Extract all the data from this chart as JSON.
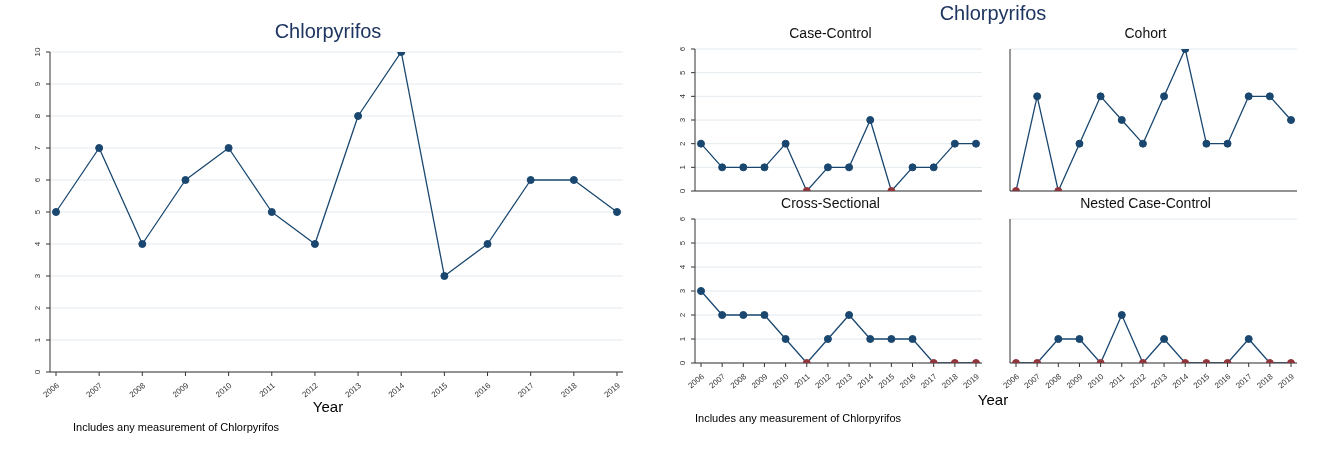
{
  "chart_data": [
    {
      "type": "line",
      "title": "Chlorpyrifos",
      "xlabel": "Year",
      "annotations": [
        "Includes any measurement of Chlorpyrifos"
      ],
      "categories": [
        "2006",
        "2007",
        "2008",
        "2009",
        "2010",
        "2011",
        "2012",
        "2013",
        "2014",
        "2015",
        "2016",
        "2017",
        "2018",
        "2019"
      ],
      "series": [
        {
          "color": "#1a476f",
          "values": [
            5,
            7,
            4,
            6,
            7,
            5,
            4,
            8,
            10,
            3,
            4,
            6,
            6,
            5
          ]
        }
      ],
      "ylim": [
        0,
        10
      ],
      "yticks": [
        0,
        1,
        2,
        3,
        4,
        5,
        6,
        7,
        8,
        9,
        10
      ],
      "grid": "y",
      "marker": "circle"
    },
    {
      "type": "other",
      "title": "Chlorpyrifos",
      "xlabel": "Year",
      "annotations": [
        "Includes any measurement of Chlorpyrifos"
      ]
    },
    {
      "type": "line",
      "title": "Case-Control",
      "categories": [
        "2006",
        "2007",
        "2008",
        "2009",
        "2010",
        "2011",
        "2012",
        "2013",
        "2014",
        "2015",
        "2016",
        "2017",
        "2018",
        "2019"
      ],
      "series": [
        {
          "color": "#1a476f",
          "values": [
            2,
            1,
            1,
            1,
            2,
            0,
            1,
            1,
            3,
            0,
            1,
            1,
            2,
            2
          ],
          "colors": [
            "#1a476f",
            "#1a476f",
            "#1a476f",
            "#1a476f",
            "#1a476f",
            "#90353b",
            "#1a476f",
            "#1a476f",
            "#1a476f",
            "#90353b",
            "#1a476f",
            "#1a476f",
            "#1a476f",
            "#1a476f"
          ]
        }
      ],
      "ylim": [
        0,
        6
      ],
      "yticks": [
        0,
        1,
        2,
        3,
        4,
        5,
        6
      ],
      "grid": "y",
      "marker": "circle",
      "tick_labels": "y"
    },
    {
      "type": "line",
      "title": "Cohort",
      "categories": [
        "2006",
        "2007",
        "2008",
        "2009",
        "2010",
        "2011",
        "2012",
        "2013",
        "2014",
        "2015",
        "2016",
        "2017",
        "2018",
        "2019"
      ],
      "series": [
        {
          "color": "#1a476f",
          "values": [
            0,
            4,
            0,
            2,
            4,
            3,
            2,
            4,
            6,
            2,
            2,
            4,
            4,
            3
          ],
          "colors": [
            "#90353b",
            "#1a476f",
            "#90353b",
            "#1a476f",
            "#1a476f",
            "#1a476f",
            "#1a476f",
            "#1a476f",
            "#1a476f",
            "#1a476f",
            "#1a476f",
            "#1a476f",
            "#1a476f",
            "#1a476f"
          ]
        }
      ],
      "ylim": [
        0,
        6
      ],
      "yticks": [
        0,
        1,
        2,
        3,
        4,
        5,
        6
      ],
      "grid": "y",
      "marker": "circle",
      "tick_labels": false
    },
    {
      "type": "line",
      "title": "Cross-Sectional",
      "categories": [
        "2006",
        "2007",
        "2008",
        "2009",
        "2010",
        "2011",
        "2012",
        "2013",
        "2014",
        "2015",
        "2016",
        "2017",
        "2018",
        "2019"
      ],
      "series": [
        {
          "color": "#1a476f",
          "values": [
            3,
            2,
            2,
            2,
            1,
            0,
            1,
            2,
            1,
            1,
            1,
            0,
            0,
            0
          ],
          "colors": [
            "#1a476f",
            "#1a476f",
            "#1a476f",
            "#1a476f",
            "#1a476f",
            "#90353b",
            "#1a476f",
            "#1a476f",
            "#1a476f",
            "#1a476f",
            "#1a476f",
            "#90353b",
            "#90353b",
            "#90353b"
          ]
        }
      ],
      "ylim": [
        0,
        6
      ],
      "yticks": [
        0,
        1,
        2,
        3,
        4,
        5,
        6
      ],
      "grid": "y",
      "marker": "circle"
    },
    {
      "type": "line",
      "title": "Nested Case-Control",
      "categories": [
        "2006",
        "2007",
        "2008",
        "2009",
        "2010",
        "2011",
        "2012",
        "2013",
        "2014",
        "2015",
        "2016",
        "2017",
        "2018",
        "2019"
      ],
      "series": [
        {
          "color": "#1a476f",
          "values": [
            0,
            0,
            1,
            1,
            0,
            2,
            0,
            1,
            0,
            0,
            0,
            1,
            0,
            0
          ],
          "colors": [
            "#90353b",
            "#90353b",
            "#1a476f",
            "#1a476f",
            "#90353b",
            "#1a476f",
            "#90353b",
            "#1a476f",
            "#90353b",
            "#90353b",
            "#90353b",
            "#1a476f",
            "#90353b",
            "#90353b"
          ]
        }
      ],
      "ylim": [
        0,
        6
      ],
      "yticks": [
        0,
        1,
        2,
        3,
        4,
        5,
        6
      ],
      "grid": "y",
      "marker": "circle",
      "tick_labels": "x"
    }
  ]
}
